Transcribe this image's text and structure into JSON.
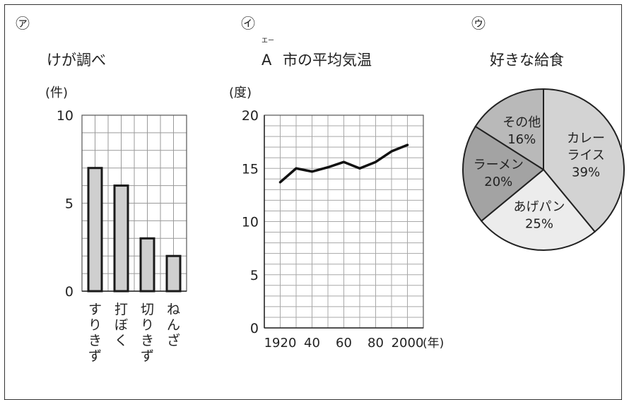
{
  "panel_a": {
    "marker": "㋐",
    "title": "けが調べ",
    "unit": "(件)"
  },
  "panel_b": {
    "marker": "㋑",
    "ruby": "エー",
    "title_letter": "A",
    "title_rest": "市の平均気温",
    "unit": "(度)",
    "x_unit": "(年)"
  },
  "panel_c": {
    "marker": "㋒",
    "title": "好きな給食"
  },
  "chart_data": [
    {
      "type": "bar",
      "title": "けが調べ",
      "ylabel": "(件)",
      "ylim": [
        0,
        10
      ],
      "yticks": [
        0,
        5,
        10
      ],
      "categories": [
        "すりきず",
        "打ぼく",
        "切りきず",
        "ねんざ"
      ],
      "values": [
        7,
        6,
        3,
        2
      ],
      "grid": true
    },
    {
      "type": "line",
      "title": "A市の平均気温",
      "ylabel": "(度)",
      "xlabel": "(年)",
      "ylim": [
        0,
        20
      ],
      "yticks": [
        0,
        5,
        10,
        15,
        20
      ],
      "xlim": [
        1910,
        2010
      ],
      "xtick_labels": [
        "1920",
        "40",
        "60",
        "80",
        "2000"
      ],
      "xtick_values": [
        1920,
        1940,
        1960,
        1980,
        2000
      ],
      "x": [
        1920,
        1930,
        1940,
        1950,
        1960,
        1970,
        1980,
        1990,
        2000
      ],
      "y": [
        13.7,
        15.0,
        14.7,
        15.1,
        15.6,
        15.0,
        15.6,
        16.6,
        17.2
      ],
      "grid": true
    },
    {
      "type": "pie",
      "title": "好きな給食",
      "slices": [
        {
          "label": [
            "カレー",
            "ライス"
          ],
          "pct": "39%",
          "value": 39,
          "color": "#d3d3d3"
        },
        {
          "label": [
            "あげパン"
          ],
          "pct": "25%",
          "value": 25,
          "color": "#ececec"
        },
        {
          "label": [
            "ラーメン"
          ],
          "pct": "20%",
          "value": 20,
          "color": "#a3a3a3"
        },
        {
          "label": [
            "その他"
          ],
          "pct": "16%",
          "value": 16,
          "color": "#b9b9b9"
        }
      ]
    }
  ]
}
